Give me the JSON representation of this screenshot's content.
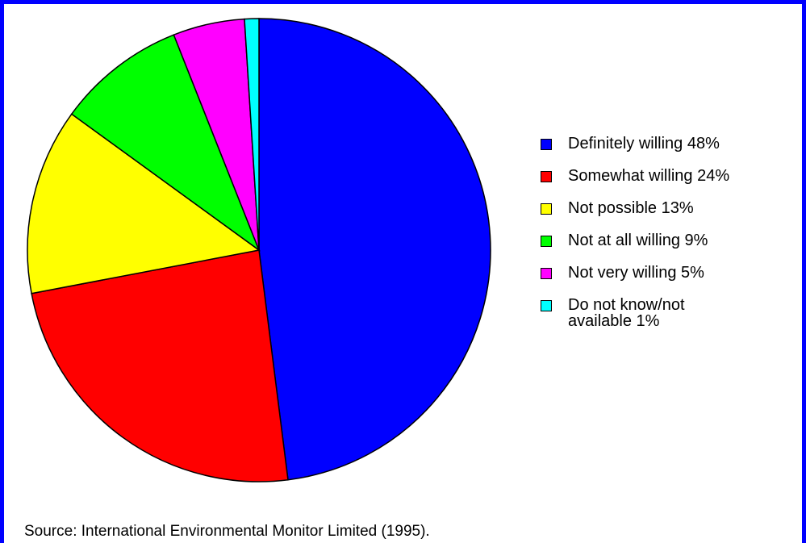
{
  "chart_data": {
    "type": "pie",
    "categories": [
      "Definitely willing",
      "Somewhat willing",
      "Not possible",
      "Not at all willing",
      "Not very willing",
      "Do not know/not available"
    ],
    "values": [
      48,
      24,
      13,
      9,
      5,
      1
    ],
    "value_labels": [
      "48%",
      "24%",
      "13%",
      "9%",
      "5%",
      "1%"
    ],
    "colors": [
      "#0000ff",
      "#ff0000",
      "#ffff00",
      "#00ff00",
      "#ff00ff",
      "#00ffff"
    ],
    "source": "Source: International Environmental Monitor Limited (1995)."
  }
}
